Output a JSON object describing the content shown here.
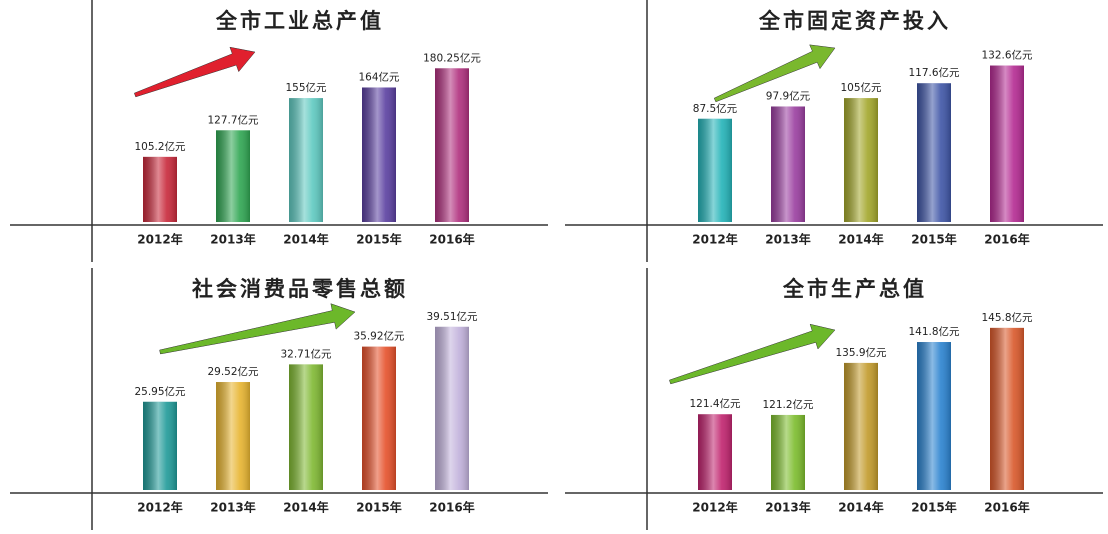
{
  "chart_data": [
    {
      "type": "bar",
      "title": "全市工业总产值",
      "categories": [
        "2012年",
        "2013年",
        "2014年",
        "2015年",
        "2016年"
      ],
      "values": [
        105.2,
        127.7,
        155,
        164,
        180.25
      ],
      "value_labels": [
        "105.2亿元",
        "127.7亿元",
        "155亿元",
        "164亿元",
        "180.25亿元"
      ],
      "colors": [
        "#c8283a",
        "#2fa652",
        "#5ec9c0",
        "#5a3fa0",
        "#b0307e"
      ],
      "ylim": [
        50,
        200
      ]
    },
    {
      "type": "bar",
      "title": "全市固定资产投入",
      "categories": [
        "2012年",
        "2013年",
        "2014年",
        "2015年",
        "2016年"
      ],
      "values": [
        87.5,
        97.9,
        105,
        117.6,
        132.6
      ],
      "value_labels": [
        "87.5亿元",
        "97.9亿元",
        "105亿元",
        "117.6亿元",
        "132.6亿元"
      ],
      "colors": [
        "#23b3b8",
        "#9a3ea0",
        "#a2a62a",
        "#3e55a6",
        "#b42a92"
      ],
      "ylim": [
        0,
        150
      ]
    },
    {
      "type": "bar",
      "title": "社会消费品零售总额",
      "categories": [
        "2012年",
        "2013年",
        "2014年",
        "2015年",
        "2016年"
      ],
      "values": [
        25.95,
        29.52,
        32.71,
        35.92,
        39.51
      ],
      "value_labels": [
        "25.95亿元",
        "29.52亿元",
        "32.71亿元",
        "35.92亿元",
        "39.51亿元"
      ],
      "colors": [
        "#1f9a98",
        "#e8b530",
        "#7fb832",
        "#e5502a",
        "#c2b2dc"
      ],
      "ylim": [
        10,
        42
      ]
    },
    {
      "type": "bar",
      "title": "全市生产总值",
      "categories": [
        "2012年",
        "2013年",
        "2014年",
        "2015年",
        "2016年"
      ],
      "values": [
        121.4,
        121.2,
        135.9,
        141.8,
        145.8
      ],
      "value_labels": [
        "121.4亿元",
        "121.2亿元",
        "135.9亿元",
        "141.8亿元",
        "145.8亿元"
      ],
      "colors": [
        "#c0236e",
        "#7cbc2c",
        "#c29a2a",
        "#2a82cf",
        "#d9582a"
      ],
      "ylim": [
        100,
        150
      ]
    }
  ]
}
